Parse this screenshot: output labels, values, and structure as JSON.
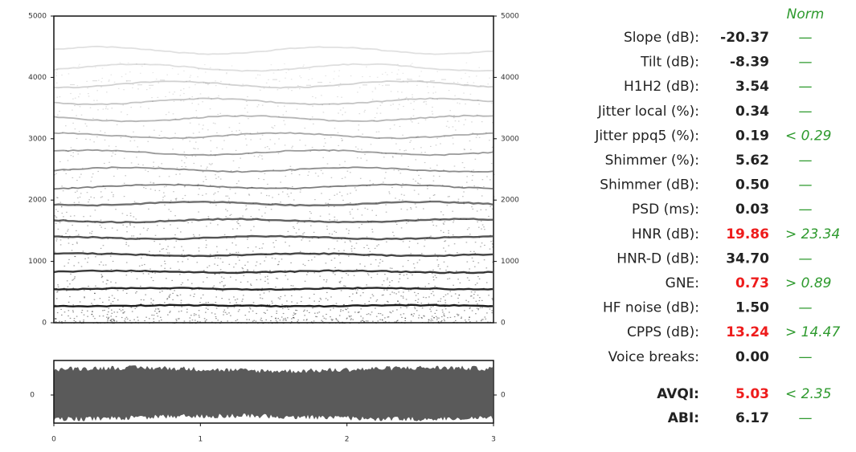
{
  "spectrogram": {
    "ylim": [
      0,
      5000
    ],
    "yticks": [
      0,
      1000,
      2000,
      3000,
      4000,
      5000
    ]
  },
  "waveform": {
    "yticks": [
      0
    ],
    "xlim": [
      0,
      3
    ],
    "xticks": [
      0,
      1,
      2,
      3
    ]
  },
  "norm_header": "Norm",
  "measures": [
    {
      "label": "Slope (dB):",
      "value": "-20.37",
      "norm": "—",
      "color": "#222222"
    },
    {
      "label": "Tilt (dB):",
      "value": "-8.39",
      "norm": "—",
      "color": "#222222"
    },
    {
      "label": "H1H2 (dB):",
      "value": "3.54",
      "norm": "—",
      "color": "#222222"
    },
    {
      "label": "Jitter local (%):",
      "value": "0.34",
      "norm": "—",
      "color": "#222222"
    },
    {
      "label": "Jitter ppq5 (%):",
      "value": "0.19",
      "norm": "< 0.29",
      "color": "#222222"
    },
    {
      "label": "Shimmer (%):",
      "value": "5.62",
      "norm": "—",
      "color": "#222222"
    },
    {
      "label": "Shimmer (dB):",
      "value": "0.50",
      "norm": "—",
      "color": "#222222"
    },
    {
      "label": "PSD (ms):",
      "value": "0.03",
      "norm": "—",
      "color": "#222222"
    },
    {
      "label": "HNR (dB):",
      "value": "19.86",
      "norm": "> 23.34",
      "color": "#ee1c1c"
    },
    {
      "label": "HNR-D (dB):",
      "value": "34.70",
      "norm": "—",
      "color": "#222222"
    },
    {
      "label": "GNE:",
      "value": "0.73",
      "norm": "> 0.89",
      "color": "#ee1c1c"
    },
    {
      "label": "HF noise (dB):",
      "value": "1.50",
      "norm": "—",
      "color": "#222222"
    },
    {
      "label": "CPPS (dB):",
      "value": "13.24",
      "norm": "> 14.47",
      "color": "#ee1c1c"
    },
    {
      "label": "Voice breaks:",
      "value": "0.00",
      "norm": "—",
      "color": "#222222"
    }
  ],
  "indices": [
    {
      "label": "AVQI:",
      "value": "5.03",
      "norm": "< 2.35",
      "color": "#ee1c1c",
      "label_color": "#b8961c"
    },
    {
      "label": "ABI:",
      "value": "6.17",
      "norm": "—",
      "color": "#222222",
      "label_color": "#6a8fc0"
    }
  ]
}
